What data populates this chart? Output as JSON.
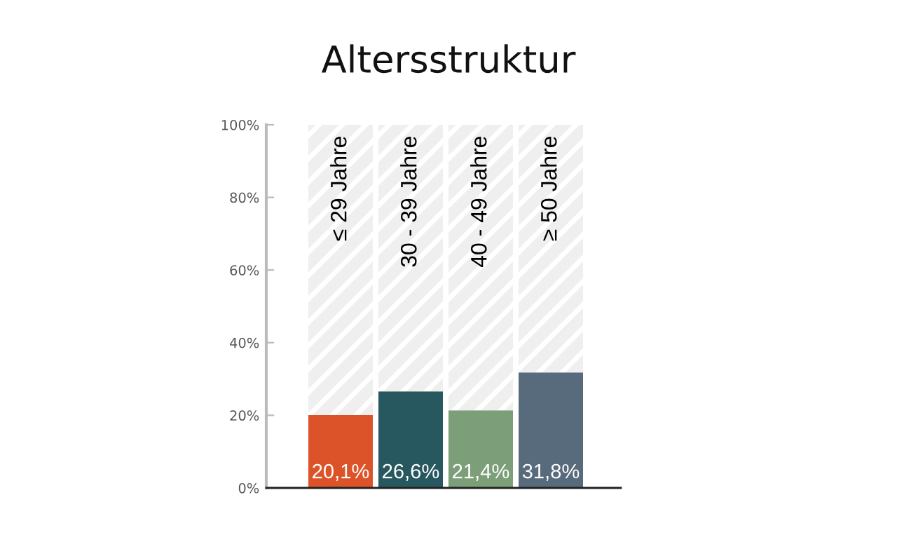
{
  "chart_data": {
    "type": "bar",
    "title": "Altersstruktur",
    "categories": [
      "≤ 29 Jahre",
      "30 - 39 Jahre",
      "40 - 49 Jahre",
      "≥ 50 Jahre"
    ],
    "stacked": true,
    "series": [
      {
        "color": "#dd5329",
        "colors": [
          "#dd5329",
          "#28585f",
          "#7c9e78",
          "#586b7d"
        ],
        "values": [
          20.1,
          26.6,
          21.4,
          31.8
        ],
        "value_labels": [
          "20,1%",
          "26,6%",
          "21,4%",
          "31,8%"
        ]
      },
      {
        "color": "#efefef",
        "values": [
          79.9,
          73.4,
          78.6,
          68.2
        ]
      }
    ],
    "ylim": [
      0,
      100
    ],
    "yticks": [
      {
        "value": 0,
        "label": "0%"
      },
      {
        "value": 20,
        "label": "20%"
      },
      {
        "value": 40,
        "label": "40%"
      },
      {
        "value": 60,
        "label": "60%"
      },
      {
        "value": 80,
        "label": "80%"
      },
      {
        "value": 100,
        "label": "100%"
      }
    ],
    "grid": false,
    "legend": false
  }
}
